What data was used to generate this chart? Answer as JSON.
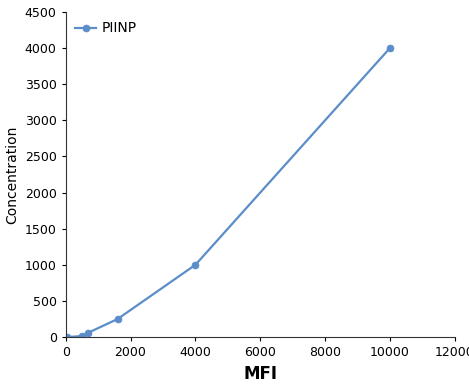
{
  "x": [
    50,
    500,
    700,
    1600,
    4000,
    10000
  ],
  "y": [
    0,
    15,
    62,
    250,
    1000,
    4000
  ],
  "line_color": "#5b8dc8",
  "marker_color": "#5b8dc8",
  "marker_style": "o",
  "marker_size": 5,
  "line_width": 1.6,
  "xlabel": "MFI",
  "ylabel": "Concentration",
  "xlim": [
    0,
    12000
  ],
  "ylim": [
    0,
    4500
  ],
  "xticks": [
    0,
    2000,
    4000,
    6000,
    8000,
    10000,
    12000
  ],
  "yticks": [
    0,
    500,
    1000,
    1500,
    2000,
    2500,
    3000,
    3500,
    4000,
    4500
  ],
  "legend_label": "PIINP",
  "xlabel_fontsize": 12,
  "ylabel_fontsize": 10,
  "tick_fontsize": 9,
  "legend_fontsize": 10,
  "background_color": "#ffffff"
}
